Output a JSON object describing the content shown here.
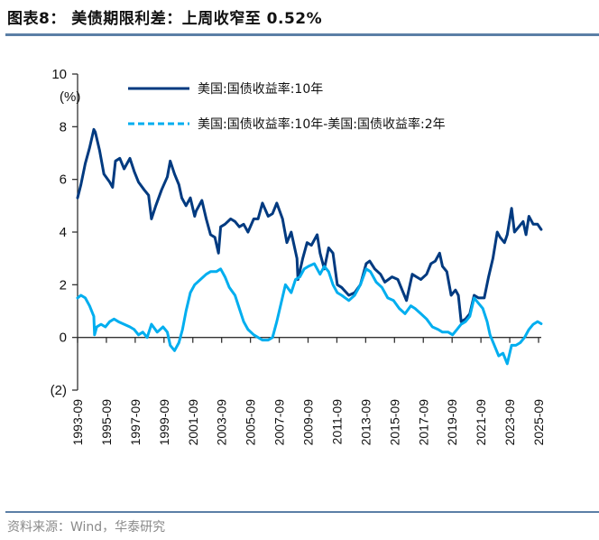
{
  "header": {
    "title": "图表8：  美债期限利差：上周收窄至 0.52%"
  },
  "footer": {
    "source": "资料来源：Wind，华泰研究"
  },
  "chart_data": {
    "type": "line",
    "title": "美债期限利差：上周收窄至 0.52%",
    "ylabel": "(%)",
    "xlabel": "",
    "ylim": [
      -2,
      10
    ],
    "yticks": [
      10,
      8,
      6,
      4,
      2,
      0,
      -2
    ],
    "ytick_labels": [
      "10",
      "8",
      "6",
      "4",
      "2",
      "0",
      "(2)"
    ],
    "xlim": [
      1993.67,
      2025.9
    ],
    "xticks": [
      1993.67,
      1995.67,
      1997.67,
      1999.67,
      2001.67,
      2003.67,
      2005.67,
      2007.67,
      2009.67,
      2011.67,
      2013.67,
      2015.67,
      2017.67,
      2019.67,
      2021.67,
      2023.67,
      2025.67
    ],
    "xtick_labels": [
      "1993-09",
      "1995-09",
      "1997-09",
      "1999-09",
      "2001-09",
      "2003-09",
      "2005-09",
      "2007-09",
      "2009-09",
      "2011-09",
      "2013-09",
      "2015-09",
      "2017-09",
      "2019-09",
      "2021-09",
      "2023-09",
      "2025-09"
    ],
    "grid": false,
    "legend": {
      "position": "top-center",
      "entries": [
        {
          "label": "美国:国债收益率:10年",
          "style": "solid",
          "color": "#003A80"
        },
        {
          "label": "美国:国债收益率:10年-美国:国债收益率:2年",
          "style": "dashed",
          "color": "#00AEEF"
        }
      ]
    },
    "series": [
      {
        "name": "美国:国债收益率:10年",
        "color": "#003A80",
        "x": [
          1993.67,
          1993.9,
          1994.2,
          1994.5,
          1994.8,
          1994.9,
          1995.2,
          1995.5,
          1995.9,
          1996.1,
          1996.3,
          1996.6,
          1996.9,
          1997.3,
          1997.6,
          1997.9,
          1998.3,
          1998.6,
          1998.8,
          1999.1,
          1999.5,
          1999.9,
          2000.1,
          2000.4,
          2000.7,
          2000.9,
          2001.2,
          2001.5,
          2001.8,
          2001.9,
          2002.3,
          2002.6,
          2002.9,
          2003.2,
          2003.45,
          2003.6,
          2003.9,
          2004.3,
          2004.6,
          2004.9,
          2005.2,
          2005.5,
          2005.9,
          2006.2,
          2006.5,
          2006.9,
          2007.2,
          2007.5,
          2007.9,
          2008.2,
          2008.5,
          2008.9,
          2008.97,
          2009.3,
          2009.6,
          2009.9,
          2010.3,
          2010.5,
          2010.8,
          2011.1,
          2011.4,
          2011.7,
          2012.0,
          2012.5,
          2012.9,
          2013.3,
          2013.7,
          2013.95,
          2014.3,
          2014.7,
          2015.0,
          2015.5,
          2015.9,
          2016.2,
          2016.5,
          2016.9,
          2017.2,
          2017.5,
          2017.9,
          2018.2,
          2018.5,
          2018.8,
          2019.0,
          2019.3,
          2019.6,
          2019.9,
          2020.1,
          2020.3,
          2020.6,
          2020.9,
          2021.2,
          2021.5,
          2021.9,
          2022.2,
          2022.5,
          2022.8,
          2023.0,
          2023.3,
          2023.5,
          2023.8,
          2024.0,
          2024.3,
          2024.6,
          2024.8,
          2025.0,
          2025.3,
          2025.6,
          2025.85
        ],
        "values": [
          5.3,
          5.8,
          6.6,
          7.2,
          7.9,
          7.8,
          7.1,
          6.2,
          5.9,
          5.7,
          6.7,
          6.8,
          6.4,
          6.8,
          6.3,
          5.9,
          5.6,
          5.4,
          4.5,
          5.0,
          5.6,
          6.1,
          6.7,
          6.2,
          5.8,
          5.3,
          5.0,
          5.3,
          4.6,
          4.8,
          5.2,
          4.5,
          3.9,
          3.8,
          3.2,
          4.2,
          4.3,
          4.5,
          4.4,
          4.2,
          4.3,
          4.0,
          4.5,
          4.5,
          5.1,
          4.6,
          4.7,
          5.1,
          4.5,
          3.6,
          4.0,
          3.0,
          2.2,
          3.0,
          3.6,
          3.5,
          3.9,
          3.2,
          2.6,
          3.4,
          3.2,
          2.0,
          1.9,
          1.6,
          1.7,
          2.0,
          2.8,
          2.9,
          2.6,
          2.4,
          2.1,
          2.3,
          2.2,
          1.8,
          1.4,
          2.4,
          2.3,
          2.2,
          2.4,
          2.8,
          2.9,
          3.2,
          2.7,
          2.5,
          1.6,
          1.8,
          1.6,
          0.6,
          0.7,
          0.9,
          1.6,
          1.5,
          1.5,
          2.3,
          3.0,
          4.0,
          3.8,
          3.6,
          3.9,
          4.9,
          4.0,
          4.2,
          4.4,
          3.9,
          4.6,
          4.3,
          4.3,
          4.1
        ]
      },
      {
        "name": "美国:国债收益率:10年-美国:国债收益率:2年",
        "color": "#00AEEF",
        "x": [
          1993.67,
          1993.9,
          1994.2,
          1994.5,
          1994.8,
          1994.85,
          1995.0,
          1995.3,
          1995.6,
          1995.9,
          1996.2,
          1996.5,
          1996.9,
          1997.3,
          1997.6,
          1997.9,
          1998.2,
          1998.5,
          1998.8,
          1999.2,
          1999.6,
          1999.9,
          2000.1,
          2000.4,
          2000.7,
          2000.95,
          2001.2,
          2001.5,
          2001.8,
          2002.2,
          2002.6,
          2002.9,
          2003.3,
          2003.6,
          2003.9,
          2004.2,
          2004.6,
          2004.9,
          2005.2,
          2005.5,
          2005.9,
          2006.2,
          2006.5,
          2006.9,
          2007.2,
          2007.5,
          2007.8,
          2008.1,
          2008.5,
          2008.8,
          2009.1,
          2009.4,
          2009.7,
          2010.1,
          2010.5,
          2010.8,
          2011.1,
          2011.4,
          2011.7,
          2012.0,
          2012.5,
          2012.9,
          2013.3,
          2013.7,
          2014.0,
          2014.4,
          2014.8,
          2015.2,
          2015.6,
          2016.0,
          2016.4,
          2016.8,
          2017.1,
          2017.5,
          2017.9,
          2018.3,
          2018.7,
          2019.0,
          2019.4,
          2019.7,
          2020.0,
          2020.3,
          2020.6,
          2020.9,
          2021.2,
          2021.5,
          2021.8,
          2022.1,
          2022.3,
          2022.6,
          2022.9,
          2023.2,
          2023.5,
          2023.8,
          2024.1,
          2024.4,
          2024.7,
          2025.0,
          2025.3,
          2025.6,
          2025.85
        ],
        "values": [
          1.5,
          1.6,
          1.5,
          1.2,
          0.8,
          0.1,
          0.4,
          0.5,
          0.4,
          0.6,
          0.7,
          0.6,
          0.5,
          0.4,
          0.3,
          0.1,
          0.2,
          0.0,
          0.5,
          0.2,
          0.4,
          0.2,
          -0.3,
          -0.5,
          -0.2,
          0.3,
          1.0,
          1.7,
          2.0,
          2.2,
          2.4,
          2.5,
          2.5,
          2.6,
          2.3,
          1.9,
          1.6,
          1.1,
          0.6,
          0.3,
          0.1,
          0.0,
          -0.1,
          -0.1,
          0.0,
          0.6,
          1.3,
          2.0,
          1.7,
          2.2,
          2.3,
          2.6,
          2.7,
          2.8,
          2.4,
          2.7,
          2.5,
          2.0,
          1.7,
          1.6,
          1.4,
          1.6,
          2.0,
          2.6,
          2.5,
          2.1,
          1.9,
          1.5,
          1.4,
          1.1,
          0.9,
          1.2,
          1.1,
          0.9,
          0.7,
          0.4,
          0.3,
          0.2,
          0.2,
          0.1,
          0.3,
          0.5,
          0.6,
          0.8,
          1.5,
          1.3,
          1.1,
          0.6,
          0.1,
          -0.3,
          -0.7,
          -0.6,
          -1.0,
          -0.3,
          -0.3,
          -0.2,
          0.0,
          0.3,
          0.5,
          0.6,
          0.52
        ]
      }
    ]
  }
}
